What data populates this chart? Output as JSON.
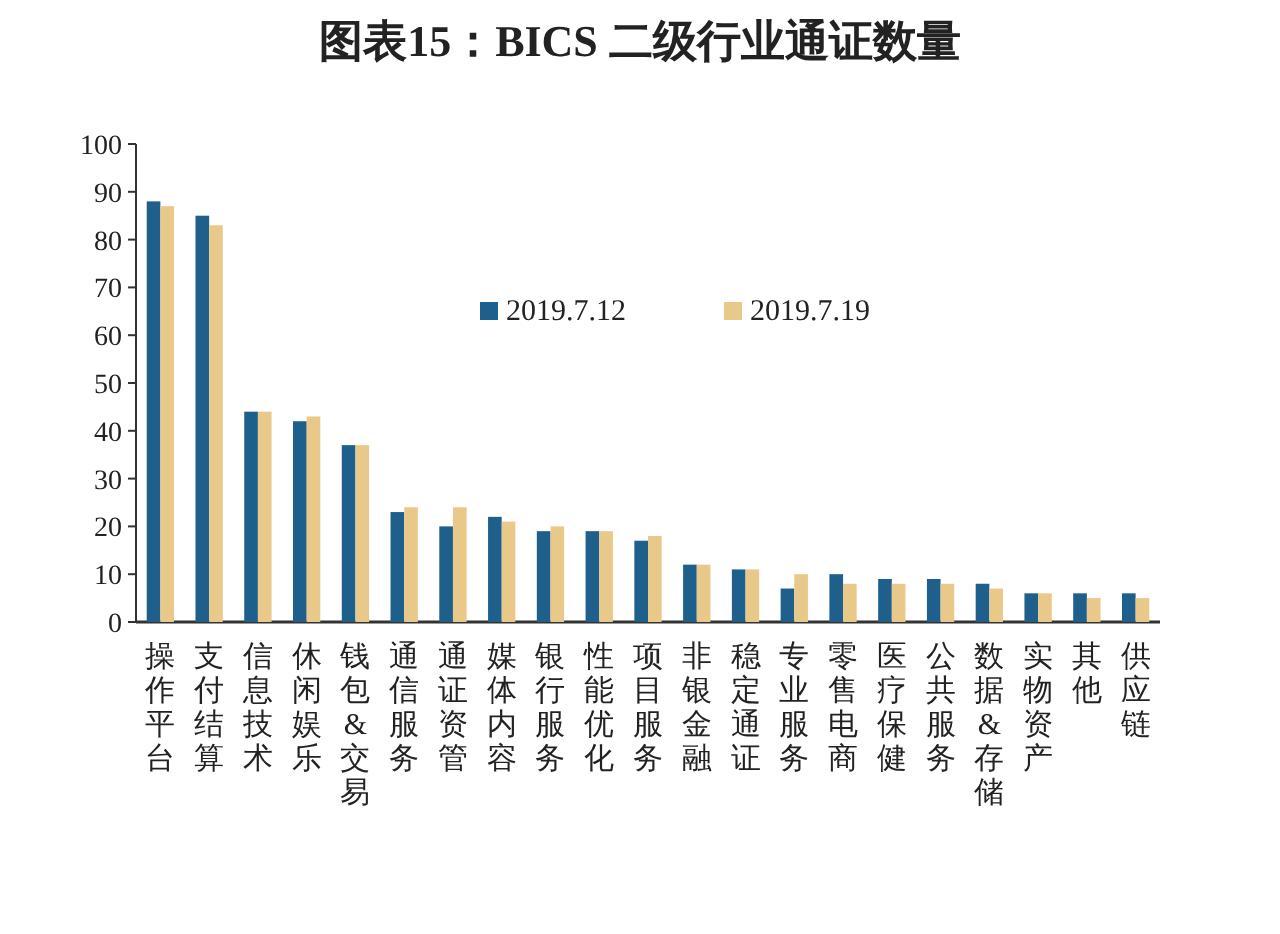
{
  "chart_data": {
    "type": "bar",
    "title": "图表15：BICS 二级行业通证数量",
    "categories": [
      "操作平台",
      "支付结算",
      "信息技术",
      "休闲娱乐",
      "钱包&交易",
      "通信服务",
      "通证资管",
      "媒体内容",
      "银行服务",
      "性能优化",
      "项目服务",
      "非银金融",
      "稳定通证",
      "专业服务",
      "零售电商",
      "医疗保健",
      "公共服务",
      "数据&存储",
      "实物资产",
      "其他",
      "供应链"
    ],
    "series": [
      {
        "name": "2019.7.12",
        "color": "#1f5f8b",
        "values": [
          88,
          85,
          44,
          42,
          37,
          23,
          20,
          22,
          19,
          19,
          17,
          12,
          11,
          7,
          10,
          9,
          9,
          8,
          6,
          6,
          6
        ]
      },
      {
        "name": "2019.7.19",
        "color": "#e8c98a",
        "values": [
          87,
          83,
          44,
          43,
          37,
          24,
          24,
          21,
          20,
          19,
          18,
          12,
          11,
          10,
          8,
          8,
          8,
          7,
          6,
          5,
          5
        ]
      }
    ],
    "ylim": [
      0,
      100
    ],
    "yticks": [
      0,
      10,
      20,
      30,
      40,
      50,
      60,
      70,
      80,
      90,
      100
    ],
    "legend": "top",
    "grid": false
  }
}
